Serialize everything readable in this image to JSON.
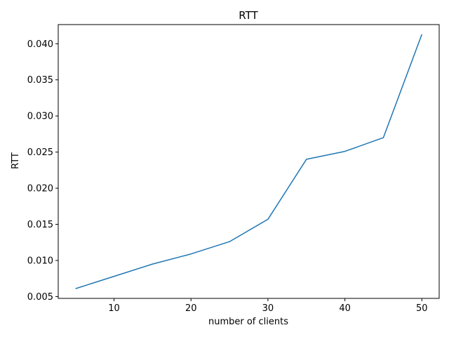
{
  "chart_data": {
    "type": "line",
    "title": "RTT",
    "xlabel": "number of clients",
    "ylabel": "RTT",
    "xlim": [
      2.75,
      52.25
    ],
    "ylim": [
      0.00475,
      0.04265
    ],
    "x_ticks": [
      10,
      20,
      30,
      40,
      50
    ],
    "x_tick_labels": [
      "10",
      "20",
      "30",
      "40",
      "50"
    ],
    "y_ticks": [
      0.005,
      0.01,
      0.015,
      0.02,
      0.025,
      0.03,
      0.035,
      0.04
    ],
    "y_tick_labels": [
      "0.005",
      "0.010",
      "0.015",
      "0.020",
      "0.025",
      "0.030",
      "0.035",
      "0.040"
    ],
    "grid": false,
    "legend": "none",
    "series": [
      {
        "color": "#1f77b4",
        "x": [
          5,
          10,
          15,
          20,
          25,
          30,
          35,
          40,
          45,
          50
        ],
        "y": [
          0.0061,
          0.0078,
          0.0095,
          0.0109,
          0.0126,
          0.0157,
          0.024,
          0.0251,
          0.027,
          0.0413
        ]
      }
    ]
  }
}
